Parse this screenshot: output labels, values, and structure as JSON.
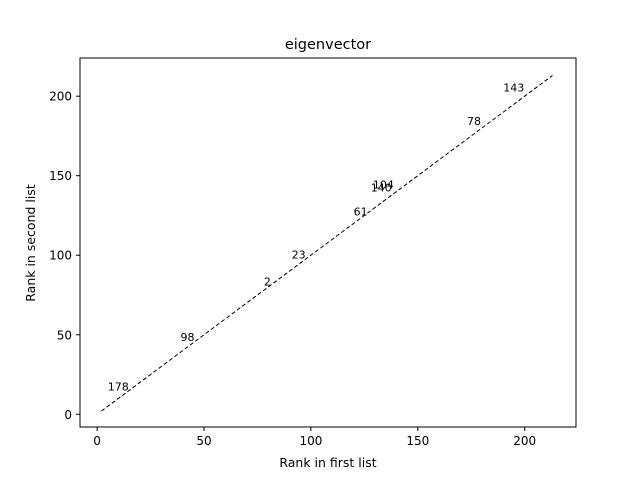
{
  "chart_data": {
    "type": "scatter",
    "title": "eigenvector",
    "xlabel": "Rank in first list",
    "ylabel": "Rank in second list",
    "xlim": [
      -8,
      224
    ],
    "ylim": [
      -8,
      224
    ],
    "xticks": [
      0,
      50,
      100,
      150,
      200
    ],
    "yticks": [
      0,
      50,
      100,
      150,
      200
    ],
    "grid": false,
    "reference_line": {
      "x": [
        2,
        213
      ],
      "y": [
        2,
        213
      ],
      "style": "dashed",
      "color": "#000000"
    },
    "points": [
      {
        "label": "178",
        "x": 5,
        "y": 15
      },
      {
        "label": "98",
        "x": 39,
        "y": 46
      },
      {
        "label": "2",
        "x": 78,
        "y": 81
      },
      {
        "label": "23",
        "x": 91,
        "y": 98
      },
      {
        "label": "61",
        "x": 120,
        "y": 125
      },
      {
        "label": "104",
        "x": 129,
        "y": 142
      },
      {
        "label": "140",
        "x": 128,
        "y": 140
      },
      {
        "label": "78",
        "x": 173,
        "y": 182
      },
      {
        "label": "143",
        "x": 190,
        "y": 203
      }
    ]
  }
}
